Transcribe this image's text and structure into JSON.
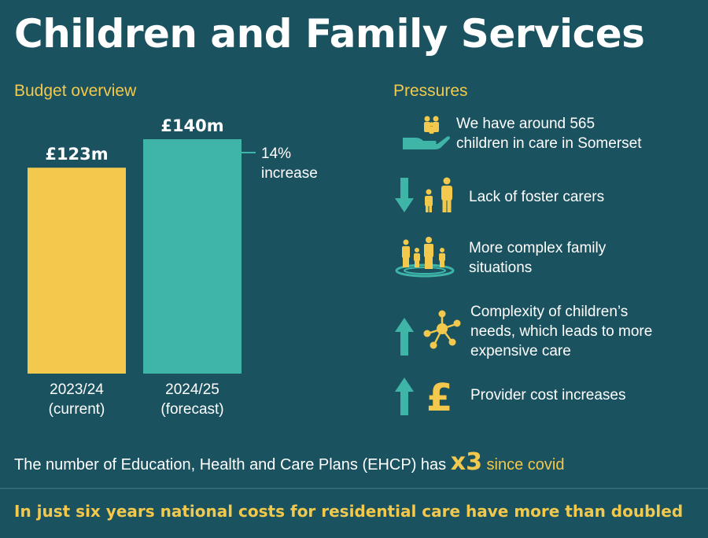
{
  "title": "Children and Family Services",
  "budget": {
    "heading": "Budget overview"
  },
  "pressures": {
    "heading": "Pressures",
    "items": [
      {
        "icon": "hand-holding-children-icon",
        "text": [
          "We have around 565",
          "children in care in Somerset"
        ]
      },
      {
        "icon": "down-arrow-family-icon",
        "text": [
          "Lack of foster carers"
        ]
      },
      {
        "icon": "family-group-icon",
        "text": [
          "More complex family",
          "situations"
        ]
      },
      {
        "icon": "up-arrow-network-icon",
        "text": [
          "Complexity of children’s",
          "needs, which leads to more",
          "expensive care"
        ]
      },
      {
        "icon": "up-arrow-pound-icon",
        "text": [
          "Provider cost increases"
        ]
      }
    ]
  },
  "ehcp": {
    "prefix": "The number of Education, Health and Care Plans (EHCP) has ",
    "multiplier": "x3",
    "suffix": " since covid"
  },
  "footer": "In just six years national costs for residential care have more than doubled",
  "colors": {
    "background": "#1b5260",
    "yellow": "#f2c94c",
    "teal": "#3fb5a8"
  },
  "chart_data": {
    "type": "bar",
    "title": "Budget overview",
    "categories": [
      "2023/24 (current)",
      "2024/25 (forecast)"
    ],
    "category_lines": [
      [
        "2023/24",
        "(current)"
      ],
      [
        "2024/25",
        "(forecast)"
      ]
    ],
    "values": [
      123,
      140
    ],
    "value_labels": [
      "£123m",
      "£140m"
    ],
    "unit": "£m",
    "colors": [
      "#f2c94c",
      "#3fb5a8"
    ],
    "annotation": {
      "text": [
        "14%",
        "increase"
      ],
      "target": "2024/25 (forecast)"
    },
    "ylim": [
      0,
      140
    ],
    "grid": false,
    "xlabel": "",
    "ylabel": ""
  }
}
